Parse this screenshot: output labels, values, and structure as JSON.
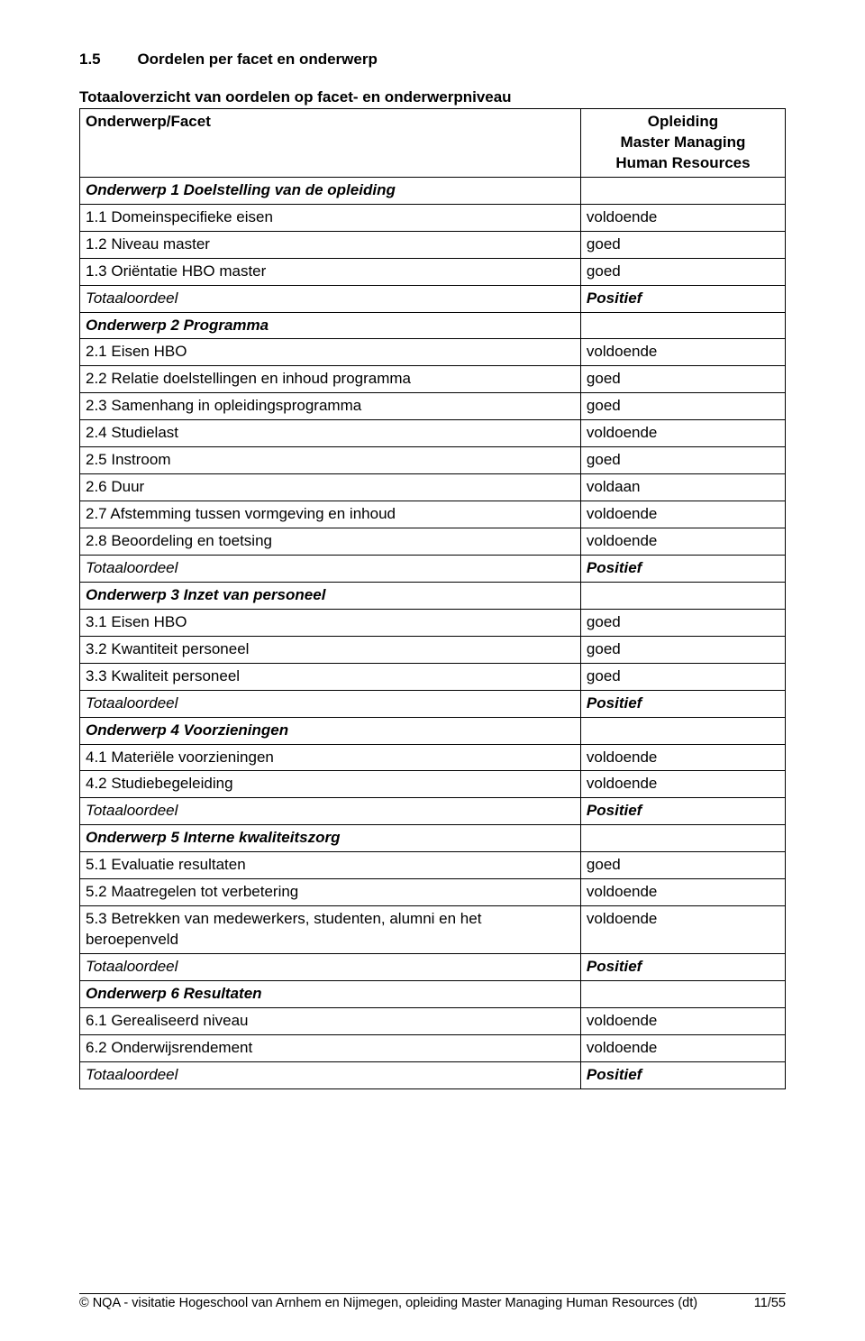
{
  "heading": {
    "number": "1.5",
    "title": "Oordelen per facet en onderwerp"
  },
  "subtitle": "Totaaloverzicht van oordelen op facet- en onderwerpniveau",
  "table": {
    "header_left": "Onderwerp/Facet",
    "header_right_line1": "Opleiding",
    "header_right_line2": "Master Managing",
    "header_right_line3": "Human Resources",
    "rows": [
      {
        "left": "Onderwerp 1 Doelstelling van de opleiding",
        "right": "",
        "kind": "section"
      },
      {
        "left": "1.1 Domeinspecifieke eisen",
        "right": "voldoende",
        "kind": "item"
      },
      {
        "left": "1.2 Niveau master",
        "right": "goed",
        "kind": "item"
      },
      {
        "left": "1.3 Oriëntatie HBO master",
        "right": "goed",
        "kind": "item"
      },
      {
        "left": "Totaaloordeel",
        "right": "Positief",
        "kind": "total"
      },
      {
        "left": "Onderwerp 2 Programma",
        "right": "",
        "kind": "section"
      },
      {
        "left": "2.1 Eisen HBO",
        "right": "voldoende",
        "kind": "item"
      },
      {
        "left": "2.2 Relatie doelstellingen en inhoud programma",
        "right": "goed",
        "kind": "item"
      },
      {
        "left": "2.3 Samenhang in opleidingsprogramma",
        "right": "goed",
        "kind": "item"
      },
      {
        "left": "2.4 Studielast",
        "right": "voldoende",
        "kind": "item"
      },
      {
        "left": "2.5 Instroom",
        "right": "goed",
        "kind": "item"
      },
      {
        "left": "2.6 Duur",
        "right": "voldaan",
        "kind": "item"
      },
      {
        "left": "2.7 Afstemming tussen vormgeving en inhoud",
        "right": "voldoende",
        "kind": "item"
      },
      {
        "left": "2.8 Beoordeling en toetsing",
        "right": "voldoende",
        "kind": "item"
      },
      {
        "left": "Totaaloordeel",
        "right": "Positief",
        "kind": "total"
      },
      {
        "left": "Onderwerp 3 Inzet van personeel",
        "right": "",
        "kind": "section"
      },
      {
        "left": "3.1 Eisen HBO",
        "right": "goed",
        "kind": "item"
      },
      {
        "left": "3.2 Kwantiteit personeel",
        "right": "goed",
        "kind": "item"
      },
      {
        "left": "3.3 Kwaliteit personeel",
        "right": "goed",
        "kind": "item"
      },
      {
        "left": "Totaaloordeel",
        "right": "Positief",
        "kind": "total"
      },
      {
        "left": "Onderwerp 4 Voorzieningen",
        "right": "",
        "kind": "section"
      },
      {
        "left": "4.1 Materiële voorzieningen",
        "right": "voldoende",
        "kind": "item"
      },
      {
        "left": "4.2 Studiebegeleiding",
        "right": "voldoende",
        "kind": "item"
      },
      {
        "left": "Totaaloordeel",
        "right": "Positief",
        "kind": "total"
      },
      {
        "left": "Onderwerp 5 Interne kwaliteitszorg",
        "right": "",
        "kind": "section"
      },
      {
        "left": "5.1 Evaluatie resultaten",
        "right": "goed",
        "kind": "item"
      },
      {
        "left": "5.2 Maatregelen tot verbetering",
        "right": "voldoende",
        "kind": "item"
      },
      {
        "left": "5.3 Betrekken van medewerkers, studenten, alumni en het beroepenveld",
        "right": "voldoende",
        "kind": "item"
      },
      {
        "left": "Totaaloordeel",
        "right": "Positief",
        "kind": "total"
      },
      {
        "left": "Onderwerp 6 Resultaten",
        "right": "",
        "kind": "section"
      },
      {
        "left": "6.1 Gerealiseerd niveau",
        "right": "voldoende",
        "kind": "item"
      },
      {
        "left": "6.2 Onderwijsrendement",
        "right": "voldoende",
        "kind": "item"
      },
      {
        "left": "Totaaloordeel",
        "right": "Positief",
        "kind": "total"
      }
    ]
  },
  "footer": {
    "text": "© NQA - visitatie Hogeschool van Arnhem en Nijmegen, opleiding Master Managing Human Resources (dt)",
    "page": "11/55"
  }
}
